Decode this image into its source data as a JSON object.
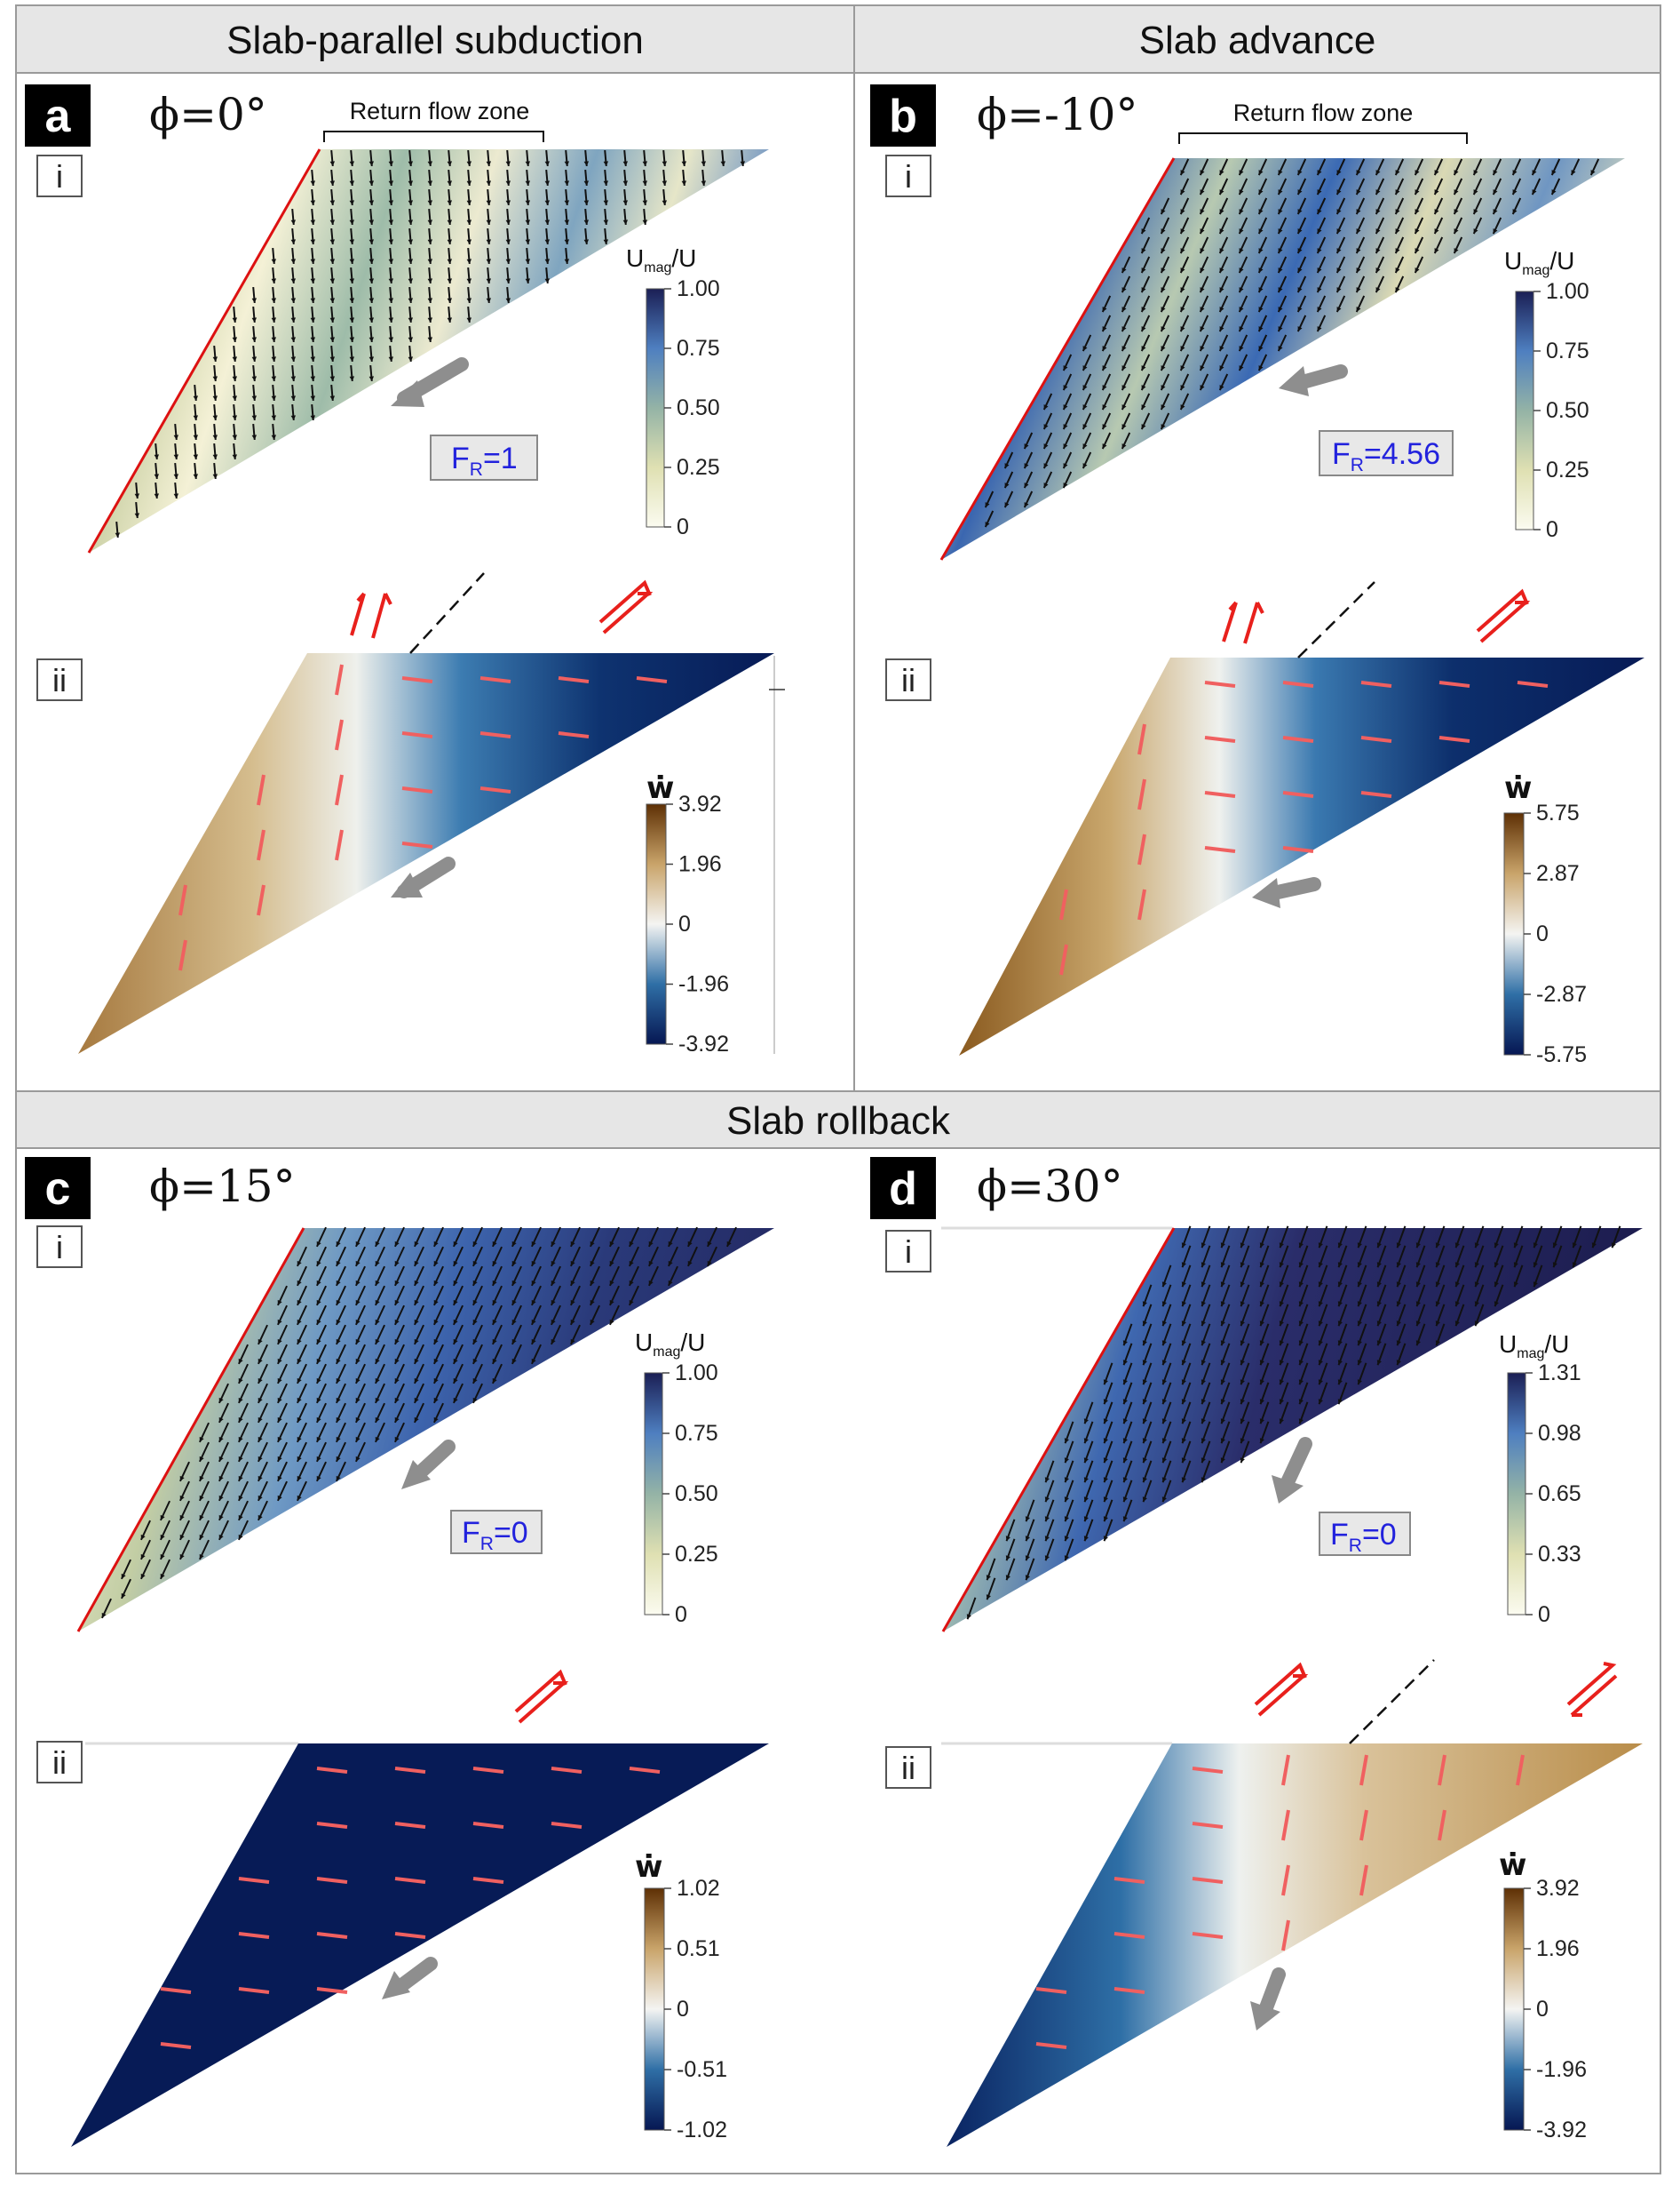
{
  "headers": {
    "slab_parallel": "Slab-parallel subduction",
    "slab_advance": "Slab advance",
    "slab_rollback": "Slab rollback"
  },
  "panels": [
    {
      "letter": "a",
      "phi": "ϕ=0°",
      "return_flow": "Return flow zone",
      "sub_i": "i",
      "sub_ii": "ii",
      "fr_main": "F",
      "fr_sub": "R",
      "fr_value": "=1",
      "u_title_main": "U",
      "u_title_sub": "mag",
      "u_title_tail": "/U",
      "u_ticks": [
        "1.00",
        "0.75",
        "0.50",
        "0.25",
        "0"
      ],
      "w_title": "ẇ",
      "w_ticks": [
        "3.92",
        "1.96",
        "0",
        "-1.96",
        "-3.92"
      ],
      "w_colors": [
        "#6b3a08",
        "#d2b27d",
        "#f3f3ef",
        "#3577a8",
        "#071b56"
      ]
    },
    {
      "letter": "b",
      "phi": "ϕ=-10°",
      "return_flow": "Return flow zone",
      "sub_i": "i",
      "sub_ii": "ii",
      "fr_main": "F",
      "fr_sub": "R",
      "fr_value": "=4.56",
      "u_title_main": "U",
      "u_title_sub": "mag",
      "u_title_tail": "/U",
      "u_ticks": [
        "1.00",
        "0.75",
        "0.50",
        "0.25",
        "0"
      ],
      "w_title": "ẇ",
      "w_ticks": [
        "5.75",
        "2.87",
        "0",
        "-2.87",
        "-5.75"
      ],
      "w_colors": [
        "#6b3a08",
        "#d2b27d",
        "#f3f3ef",
        "#3577a8",
        "#071b56"
      ]
    },
    {
      "letter": "c",
      "phi": "ϕ=15°",
      "sub_i": "i",
      "sub_ii": "ii",
      "fr_main": "F",
      "fr_sub": "R",
      "fr_value": "=0",
      "u_title_main": "U",
      "u_title_sub": "mag",
      "u_title_tail": "/U",
      "u_ticks": [
        "1.00",
        "0.75",
        "0.50",
        "0.25",
        "0"
      ],
      "w_title": "ẇ",
      "w_ticks": [
        "1.02",
        "0.51",
        "0",
        "-0.51",
        "-1.02"
      ],
      "w_colors": [
        "#6b3a08",
        "#d2b27d",
        "#f3f3ef",
        "#3577a8",
        "#071b56"
      ]
    },
    {
      "letter": "d",
      "phi": "ϕ=30°",
      "sub_i": "i",
      "sub_ii": "ii",
      "fr_main": "F",
      "fr_sub": "R",
      "fr_value": "=0",
      "u_title_main": "U",
      "u_title_sub": "mag",
      "u_title_tail": "/U",
      "u_ticks": [
        "1.31",
        "0.98",
        "0.65",
        "0.33",
        "0"
      ],
      "w_title": "ẇ",
      "w_ticks": [
        "3.92",
        "1.96",
        "0",
        "-1.96",
        "-3.92"
      ],
      "w_colors": [
        "#6b3a08",
        "#d2b27d",
        "#f3f3ef",
        "#3577a8",
        "#071b56"
      ]
    }
  ],
  "colors": {
    "u_scale": [
      "#f7f5dc",
      "#a8bf9f",
      "#5b8cc4",
      "#1d2a5e"
    ],
    "slab_edge": "#dd1111",
    "shear_arrows": "#e8201c",
    "strain_dashes": "#f06060",
    "header_bg": "#e6e6e6",
    "badge_bg": "#000000"
  }
}
